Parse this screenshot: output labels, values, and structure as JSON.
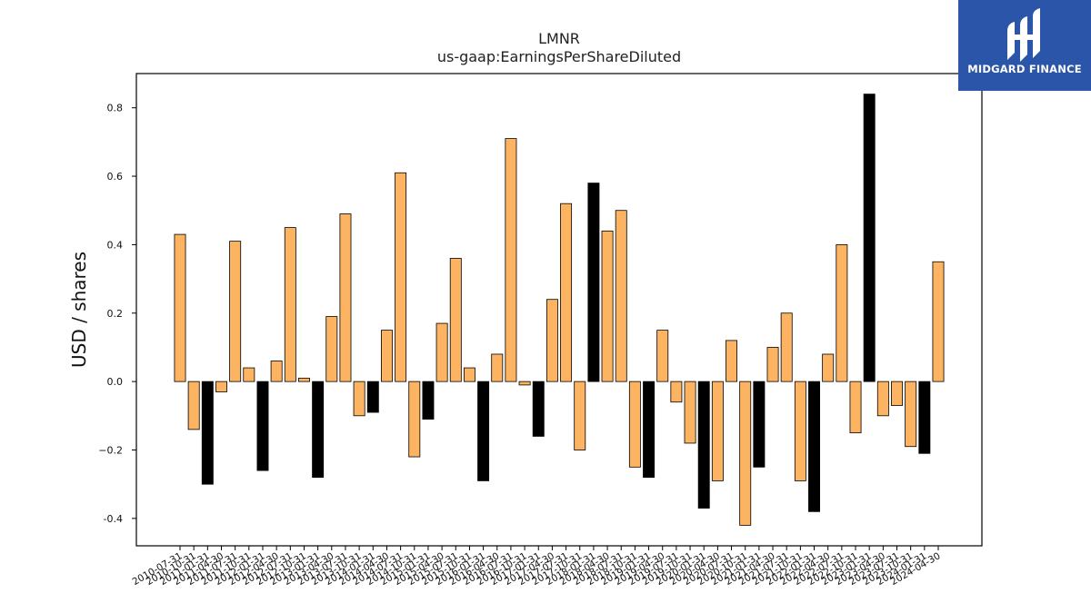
{
  "logo": {
    "text": "MIDGARD FINANCE",
    "bg_color": "#2b55a8",
    "icon": "midgard-logo-mark"
  },
  "chart_data": {
    "type": "bar",
    "title": "LMNR",
    "subtitle": "us-gaap:EarningsPerShareDiluted",
    "xlabel": "",
    "ylabel": "USD / shares",
    "ylim": [
      -0.48,
      0.9
    ],
    "yticks": [
      "-0.4",
      "−0.2",
      "0.0",
      "0.2",
      "0.4",
      "0.6",
      "0.8"
    ],
    "ytick_values": [
      -0.4,
      -0.2,
      0.0,
      0.2,
      0.4,
      0.6,
      0.8
    ],
    "grid": false,
    "colors": {
      "quarter": "#fdb462",
      "annual": "#000000",
      "edge": "#000000"
    },
    "categories": [
      "2010-07-31",
      "2010-10-31",
      "2011-01-31",
      "2011-04-30",
      "2011-07-31",
      "2011-10-31",
      "2012-01-31",
      "2012-04-30",
      "2012-07-31",
      "2012-10-31",
      "2013-01-31",
      "2013-04-30",
      "2013-07-31",
      "2013-10-31",
      "2014-01-31",
      "2014-04-30",
      "2014-07-31",
      "2014-10-31",
      "2015-01-31",
      "2015-04-30",
      "2015-07-31",
      "2015-10-31",
      "2016-01-31",
      "2016-04-30",
      "2016-07-31",
      "2016-10-31",
      "2017-01-31",
      "2017-04-30",
      "2017-07-31",
      "2017-10-31",
      "2018-01-31",
      "2018-04-30",
      "2018-07-31",
      "2018-10-31",
      "2019-01-31",
      "2019-04-30",
      "2019-07-31",
      "2019-10-31",
      "2020-01-31",
      "2020-04-30",
      "2020-07-31",
      "2020-10-31",
      "2021-01-31",
      "2021-04-30",
      "2021-07-31",
      "2021-10-31",
      "2022-01-31",
      "2022-04-30",
      "2022-07-31",
      "2022-10-31",
      "2023-01-31",
      "2023-04-30",
      "2023-07-31",
      "2023-10-31",
      "2024-01-31",
      "2024-04-30"
    ],
    "values": [
      0.43,
      -0.14,
      -0.3,
      -0.03,
      0.41,
      0.04,
      -0.26,
      0.06,
      0.45,
      0.01,
      -0.28,
      0.19,
      0.49,
      -0.1,
      -0.09,
      0.15,
      0.61,
      -0.22,
      -0.11,
      0.17,
      0.36,
      0.04,
      -0.29,
      0.08,
      0.71,
      -0.01,
      -0.16,
      0.24,
      0.52,
      -0.2,
      0.58,
      0.44,
      0.5,
      -0.25,
      -0.28,
      0.15,
      -0.06,
      -0.18,
      -0.37,
      -0.29,
      0.12,
      -0.42,
      -0.25,
      0.1,
      0.2,
      -0.29,
      -0.38,
      0.08,
      0.4,
      -0.15,
      0.84,
      -0.1,
      -0.07,
      -0.19,
      -0.21,
      0.35
    ],
    "annual_flags": [
      0,
      0,
      1,
      0,
      0,
      0,
      1,
      0,
      0,
      0,
      1,
      0,
      0,
      0,
      1,
      0,
      0,
      0,
      1,
      0,
      0,
      0,
      1,
      0,
      0,
      0,
      1,
      0,
      0,
      0,
      1,
      0,
      0,
      0,
      1,
      0,
      0,
      0,
      1,
      0,
      0,
      0,
      1,
      0,
      0,
      0,
      1,
      0,
      0,
      0,
      1,
      0,
      0,
      0,
      1,
      0
    ]
  }
}
